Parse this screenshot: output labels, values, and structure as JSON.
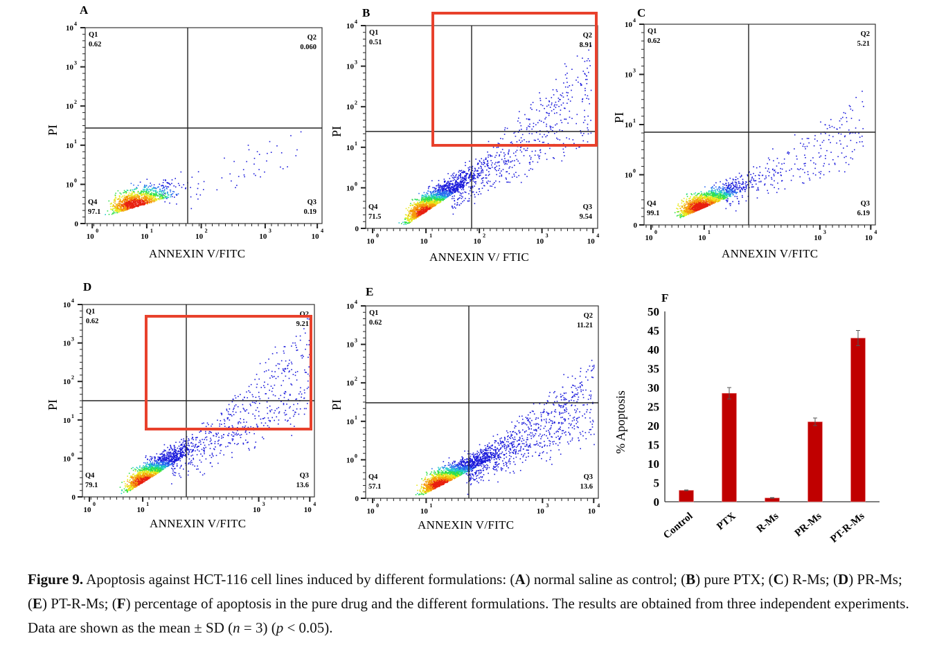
{
  "flow_panels": [
    {
      "id": "A",
      "x_label": "ANNEXIN V/FITC",
      "y_label": "PI",
      "x_ticks": [
        "10",
        "10",
        "10",
        "10",
        "10"
      ],
      "x_tick_exp": [
        "0",
        "1",
        "2",
        "3",
        "4"
      ],
      "y_ticks": [
        "0",
        "10",
        "10",
        "10",
        "10",
        "10"
      ],
      "y_tick_exp": [
        "",
        "0",
        "1",
        "2",
        "3",
        "4"
      ],
      "quadrants": {
        "Q1": "0.62",
        "Q2": "0.060",
        "Q3": "0.19",
        "Q4": "97.1"
      },
      "highlight": false
    },
    {
      "id": "B",
      "x_label": "ANNEXIN V/ FTIC",
      "y_label": "PI",
      "x_ticks": [
        "10",
        "10",
        "10",
        "10",
        "10"
      ],
      "x_tick_exp": [
        "0",
        "1",
        "2",
        "3",
        "4"
      ],
      "y_ticks": [
        "0",
        "10",
        "10",
        "10",
        "10",
        "10"
      ],
      "y_tick_exp": [
        "",
        "0",
        "1",
        "2",
        "3",
        "4"
      ],
      "quadrants": {
        "Q1": "0.51",
        "Q2": "8.91",
        "Q3": "9.54",
        "Q4": "71.5"
      },
      "highlight": true
    },
    {
      "id": "C",
      "x_label": "ANNEXIN V/FITC",
      "y_label": "PI",
      "x_ticks": [
        "10",
        "10",
        "10",
        "10"
      ],
      "x_tick_exp": [
        "0",
        "1",
        "3",
        "4"
      ],
      "y_ticks": [
        "0",
        "10",
        "10",
        "10",
        "10"
      ],
      "y_tick_exp": [
        "",
        "0",
        "1",
        "3",
        "4"
      ],
      "quadrants": {
        "Q1": "0.62",
        "Q2": "5.21",
        "Q3": "6.19",
        "Q4": "99.1"
      },
      "highlight": false
    },
    {
      "id": "D",
      "x_label": "ANNEXIN V/FITC",
      "y_label": "PI",
      "x_ticks": [
        "10",
        "10",
        "10",
        "10"
      ],
      "x_tick_exp": [
        "0",
        "1",
        "3",
        "4"
      ],
      "y_ticks": [
        "0",
        "10",
        "10",
        "10",
        "10",
        "10"
      ],
      "y_tick_exp": [
        "",
        "0",
        "1",
        "2",
        "3",
        "4"
      ],
      "quadrants": {
        "Q1": "0.62",
        "Q2": "9.21",
        "Q3": "13.6",
        "Q4": "79.1"
      },
      "highlight": true
    },
    {
      "id": "E",
      "x_label": "ANNEXIN V/FITC",
      "y_label": "PI",
      "x_ticks": [
        "10",
        "10",
        "10",
        "10"
      ],
      "x_tick_exp": [
        "0",
        "1",
        "3",
        "4"
      ],
      "y_ticks": [
        "0",
        "10",
        "10",
        "10",
        "10",
        "10"
      ],
      "y_tick_exp": [
        "",
        "0",
        "1",
        "2",
        "3",
        "4"
      ],
      "quadrants": {
        "Q1": "0.62",
        "Q2": "11.21",
        "Q3": "13.6",
        "Q4": "57.1"
      },
      "highlight": false
    }
  ],
  "chart_data": {
    "type": "bar",
    "panel": "F",
    "title": "",
    "xlabel": "",
    "ylabel": "% Apoptosis",
    "categories": [
      "Control",
      "PTX",
      "R-Ms",
      "PR-Ms",
      "PT-R-Ms"
    ],
    "values": [
      3.0,
      28.5,
      1.0,
      21.0,
      43.0
    ],
    "errors": [
      0.1,
      1.5,
      0.1,
      1.0,
      2.0
    ],
    "ylim": [
      0,
      50
    ],
    "yticks": [
      "0",
      "5",
      "10",
      "15",
      "20",
      "25",
      "30",
      "35",
      "40",
      "45",
      "50"
    ],
    "grid": false,
    "bar_color": "#c00000",
    "error_color": "#555555"
  },
  "colors": {
    "highlight_box": "#e8412c",
    "dot_low": "#1a1adb"
  },
  "caption": {
    "figure_label": "Figure 9.",
    "segments": [
      {
        "t": " Apoptosis against HCT-116 cell lines induced by different formulations: (",
        "s": ""
      },
      {
        "t": "A",
        "s": "b"
      },
      {
        "t": ") normal saline as control; (",
        "s": ""
      },
      {
        "t": "B",
        "s": "b"
      },
      {
        "t": ") pure PTX; (",
        "s": ""
      },
      {
        "t": "C",
        "s": "b"
      },
      {
        "t": ") R-Ms; (",
        "s": ""
      },
      {
        "t": "D",
        "s": "b"
      },
      {
        "t": ") PR-Ms; (",
        "s": ""
      },
      {
        "t": "E",
        "s": "b"
      },
      {
        "t": ") PT-R-Ms; (",
        "s": ""
      },
      {
        "t": "F",
        "s": "b"
      },
      {
        "t": ") percentage of apoptosis in the pure drug and the different formulations. The results are obtained from three independent experiments. Data are shown as the mean ± SD (",
        "s": ""
      },
      {
        "t": "n",
        "s": "i"
      },
      {
        "t": " = 3) (",
        "s": ""
      },
      {
        "t": "p",
        "s": "i"
      },
      {
        "t": " < 0.05).",
        "s": ""
      }
    ]
  }
}
